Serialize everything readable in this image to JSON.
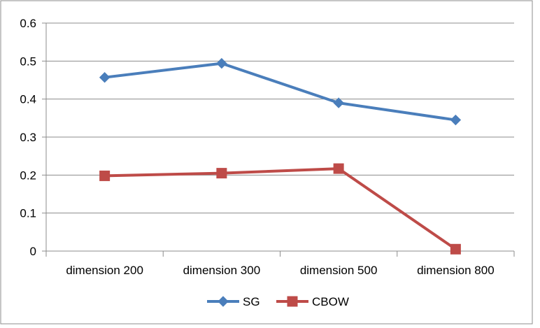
{
  "chart_data": {
    "type": "line",
    "categories": [
      "dimension 200",
      "dimension 300",
      "dimension 500",
      "dimension 800"
    ],
    "series": [
      {
        "name": "SG",
        "values": [
          0.457,
          0.494,
          0.39,
          0.345
        ],
        "color": "#4a7ebb",
        "marker": "diamond"
      },
      {
        "name": "CBOW",
        "values": [
          0.198,
          0.205,
          0.217,
          0.005
        ],
        "color": "#be4b48",
        "marker": "square"
      }
    ],
    "ylim": [
      0,
      0.6
    ],
    "yticks": [
      0,
      0.1,
      0.2,
      0.3,
      0.4,
      0.5,
      0.6
    ],
    "ytick_labels": [
      "0",
      "0.1",
      "0.2",
      "0.3",
      "0.4",
      "0.5",
      "0.6"
    ],
    "grid": true,
    "legend_position": "bottom"
  }
}
